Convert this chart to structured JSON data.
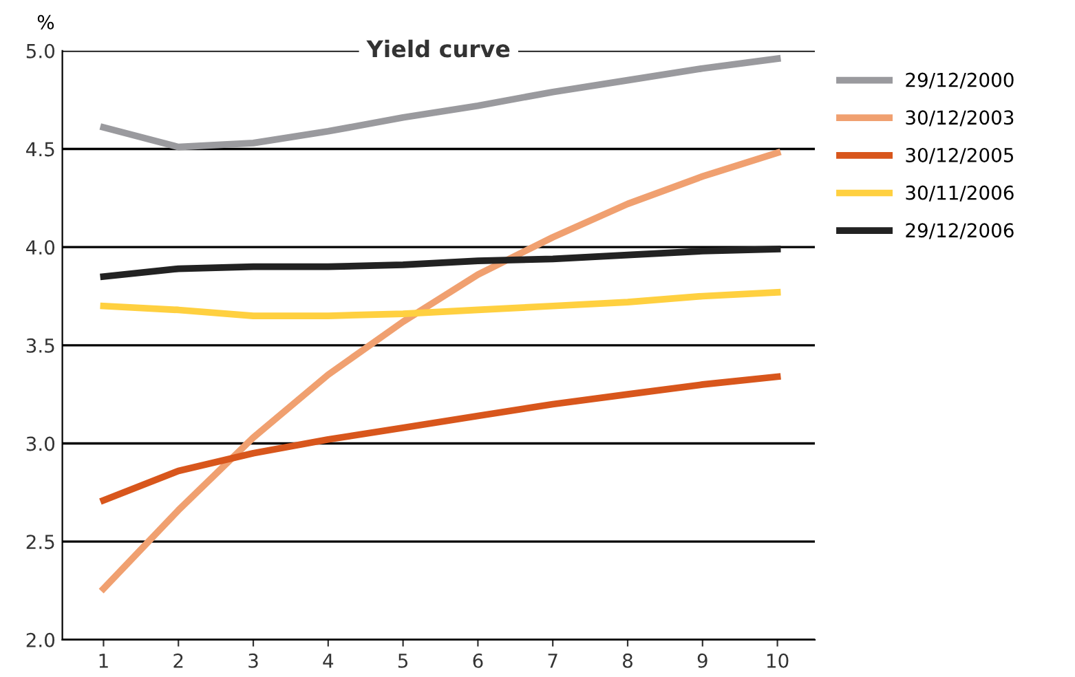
{
  "chart_data": {
    "type": "line",
    "title": "Yield curve",
    "ylabel": "%",
    "x": [
      1,
      2,
      3,
      4,
      5,
      6,
      7,
      8,
      9,
      10
    ],
    "series": [
      {
        "name": "29/12/2000",
        "color": "#9a9a9e",
        "values": [
          4.61,
          4.51,
          4.53,
          4.59,
          4.66,
          4.72,
          4.79,
          4.85,
          4.91,
          4.96
        ]
      },
      {
        "name": "30/12/2003",
        "color": "#f0a070",
        "values": [
          2.26,
          2.66,
          3.03,
          3.35,
          3.62,
          3.86,
          4.05,
          4.22,
          4.36,
          4.48
        ]
      },
      {
        "name": "30/12/2005",
        "color": "#d8561c",
        "values": [
          2.71,
          2.86,
          2.95,
          3.02,
          3.08,
          3.14,
          3.2,
          3.25,
          3.3,
          3.34
        ]
      },
      {
        "name": "30/11/2006",
        "color": "#ffd040",
        "values": [
          3.7,
          3.68,
          3.65,
          3.65,
          3.66,
          3.68,
          3.7,
          3.72,
          3.75,
          3.77
        ]
      },
      {
        "name": "29/12/2006",
        "color": "#222222",
        "values": [
          3.85,
          3.89,
          3.9,
          3.9,
          3.91,
          3.93,
          3.94,
          3.96,
          3.98,
          3.99
        ]
      }
    ],
    "xlim": [
      0.45,
      10.5
    ],
    "xticks": [
      1,
      2,
      3,
      4,
      5,
      6,
      7,
      8,
      9,
      10
    ],
    "ylim": [
      2.0,
      5.0
    ],
    "yticks": [
      {
        "value": 2.0,
        "label": "2.0"
      },
      {
        "value": 2.5,
        "label": "2.5"
      },
      {
        "value": 3.0,
        "label": "3.0"
      },
      {
        "value": 3.5,
        "label": "3.5"
      },
      {
        "value": 4.0,
        "label": "4.0"
      },
      {
        "value": 4.5,
        "label": "4.5"
      },
      {
        "value": 5.0,
        "label": "5.0"
      }
    ],
    "grid": "y",
    "legend": "right",
    "marker": "none",
    "line_style": "solid"
  }
}
